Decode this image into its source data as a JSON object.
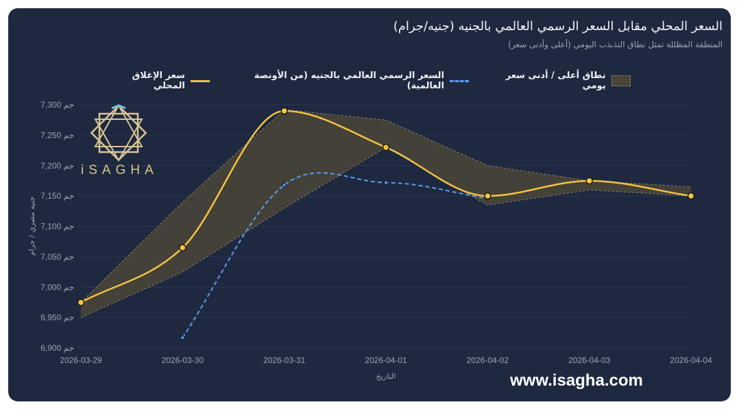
{
  "chart_data": {
    "type": "line",
    "title": "السعر المحلي مقابل السعر الرسمي العالمي بالجنيه (جنيه/جرام)",
    "subtitle": "المنطقة المظللة تمثل نطاق التذبذب اليومي (أعلى وأدنى سعر)",
    "xlabel": "التاريخ",
    "ylabel": "جنيه مصري / جرام",
    "y_tick_suffix": "جم",
    "ylim": [
      6900,
      7300
    ],
    "y_ticks": [
      "7,300 جم",
      "7,250 جم",
      "7,200 جم",
      "7,150 جم",
      "7,100 جم",
      "7,050 جم",
      "7,000 جم",
      "6,950 جم",
      "6,900 جم"
    ],
    "y_tick_values": [
      7300,
      7250,
      7200,
      7150,
      7100,
      7050,
      7000,
      6950,
      6900
    ],
    "categories": [
      "2026-03-29",
      "2026-03-30",
      "2026-03-31",
      "2026-04-01",
      "2026-04-02",
      "2026-04-03",
      "2026-04-04"
    ],
    "grid": true,
    "legend_position": "top",
    "series": [
      {
        "name": "سعر الإغلاق المحلي",
        "style": "solid",
        "color": "#f6c343",
        "values": [
          6975,
          7065,
          7290,
          7230,
          7150,
          7175,
          7150
        ]
      },
      {
        "name": "السعر الرسمي العالمي بالجنيه (من الأونصة العالمية)",
        "style": "dashed",
        "color": "#5aa0f0",
        "values": [
          null,
          6917,
          7168,
          7172,
          7146,
          null,
          null
        ]
      },
      {
        "name": "نطاق أعلى / أدنى سعر يومي",
        "style": "band",
        "color": "#4a4537",
        "high": [
          6975,
          7140,
          7292,
          7275,
          7200,
          7175,
          7165
        ],
        "low": [
          6950,
          7025,
          7130,
          7230,
          7135,
          7160,
          7150
        ]
      }
    ]
  },
  "logo": {
    "text": "iSAGHA"
  },
  "watermark": "www.isagha.com"
}
